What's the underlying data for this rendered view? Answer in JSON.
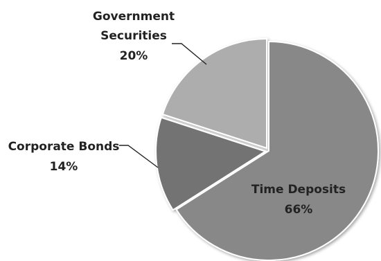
{
  "chart_data": {
    "type": "pie",
    "title": "",
    "slices": [
      {
        "label": "Time Deposits",
        "value_label": "66%",
        "value": 66,
        "color": "#888888"
      },
      {
        "label": "Corporate Bonds",
        "value_label": "14%",
        "value": 14,
        "color": "#737373"
      },
      {
        "label": "Government Securities",
        "value_label": "20%",
        "value": 20,
        "color": "#adadad"
      }
    ],
    "labels": {
      "time_deposits_line1": "Time Deposits",
      "time_deposits_line2": "66%",
      "corporate_bonds_line1": "Corporate Bonds",
      "corporate_bonds_line2": "14%",
      "government_line1": "Government",
      "government_line2": "Securities",
      "government_line3": "20%"
    },
    "start_angle": "12 o'clock",
    "direction": "clockwise",
    "legend": "none"
  }
}
